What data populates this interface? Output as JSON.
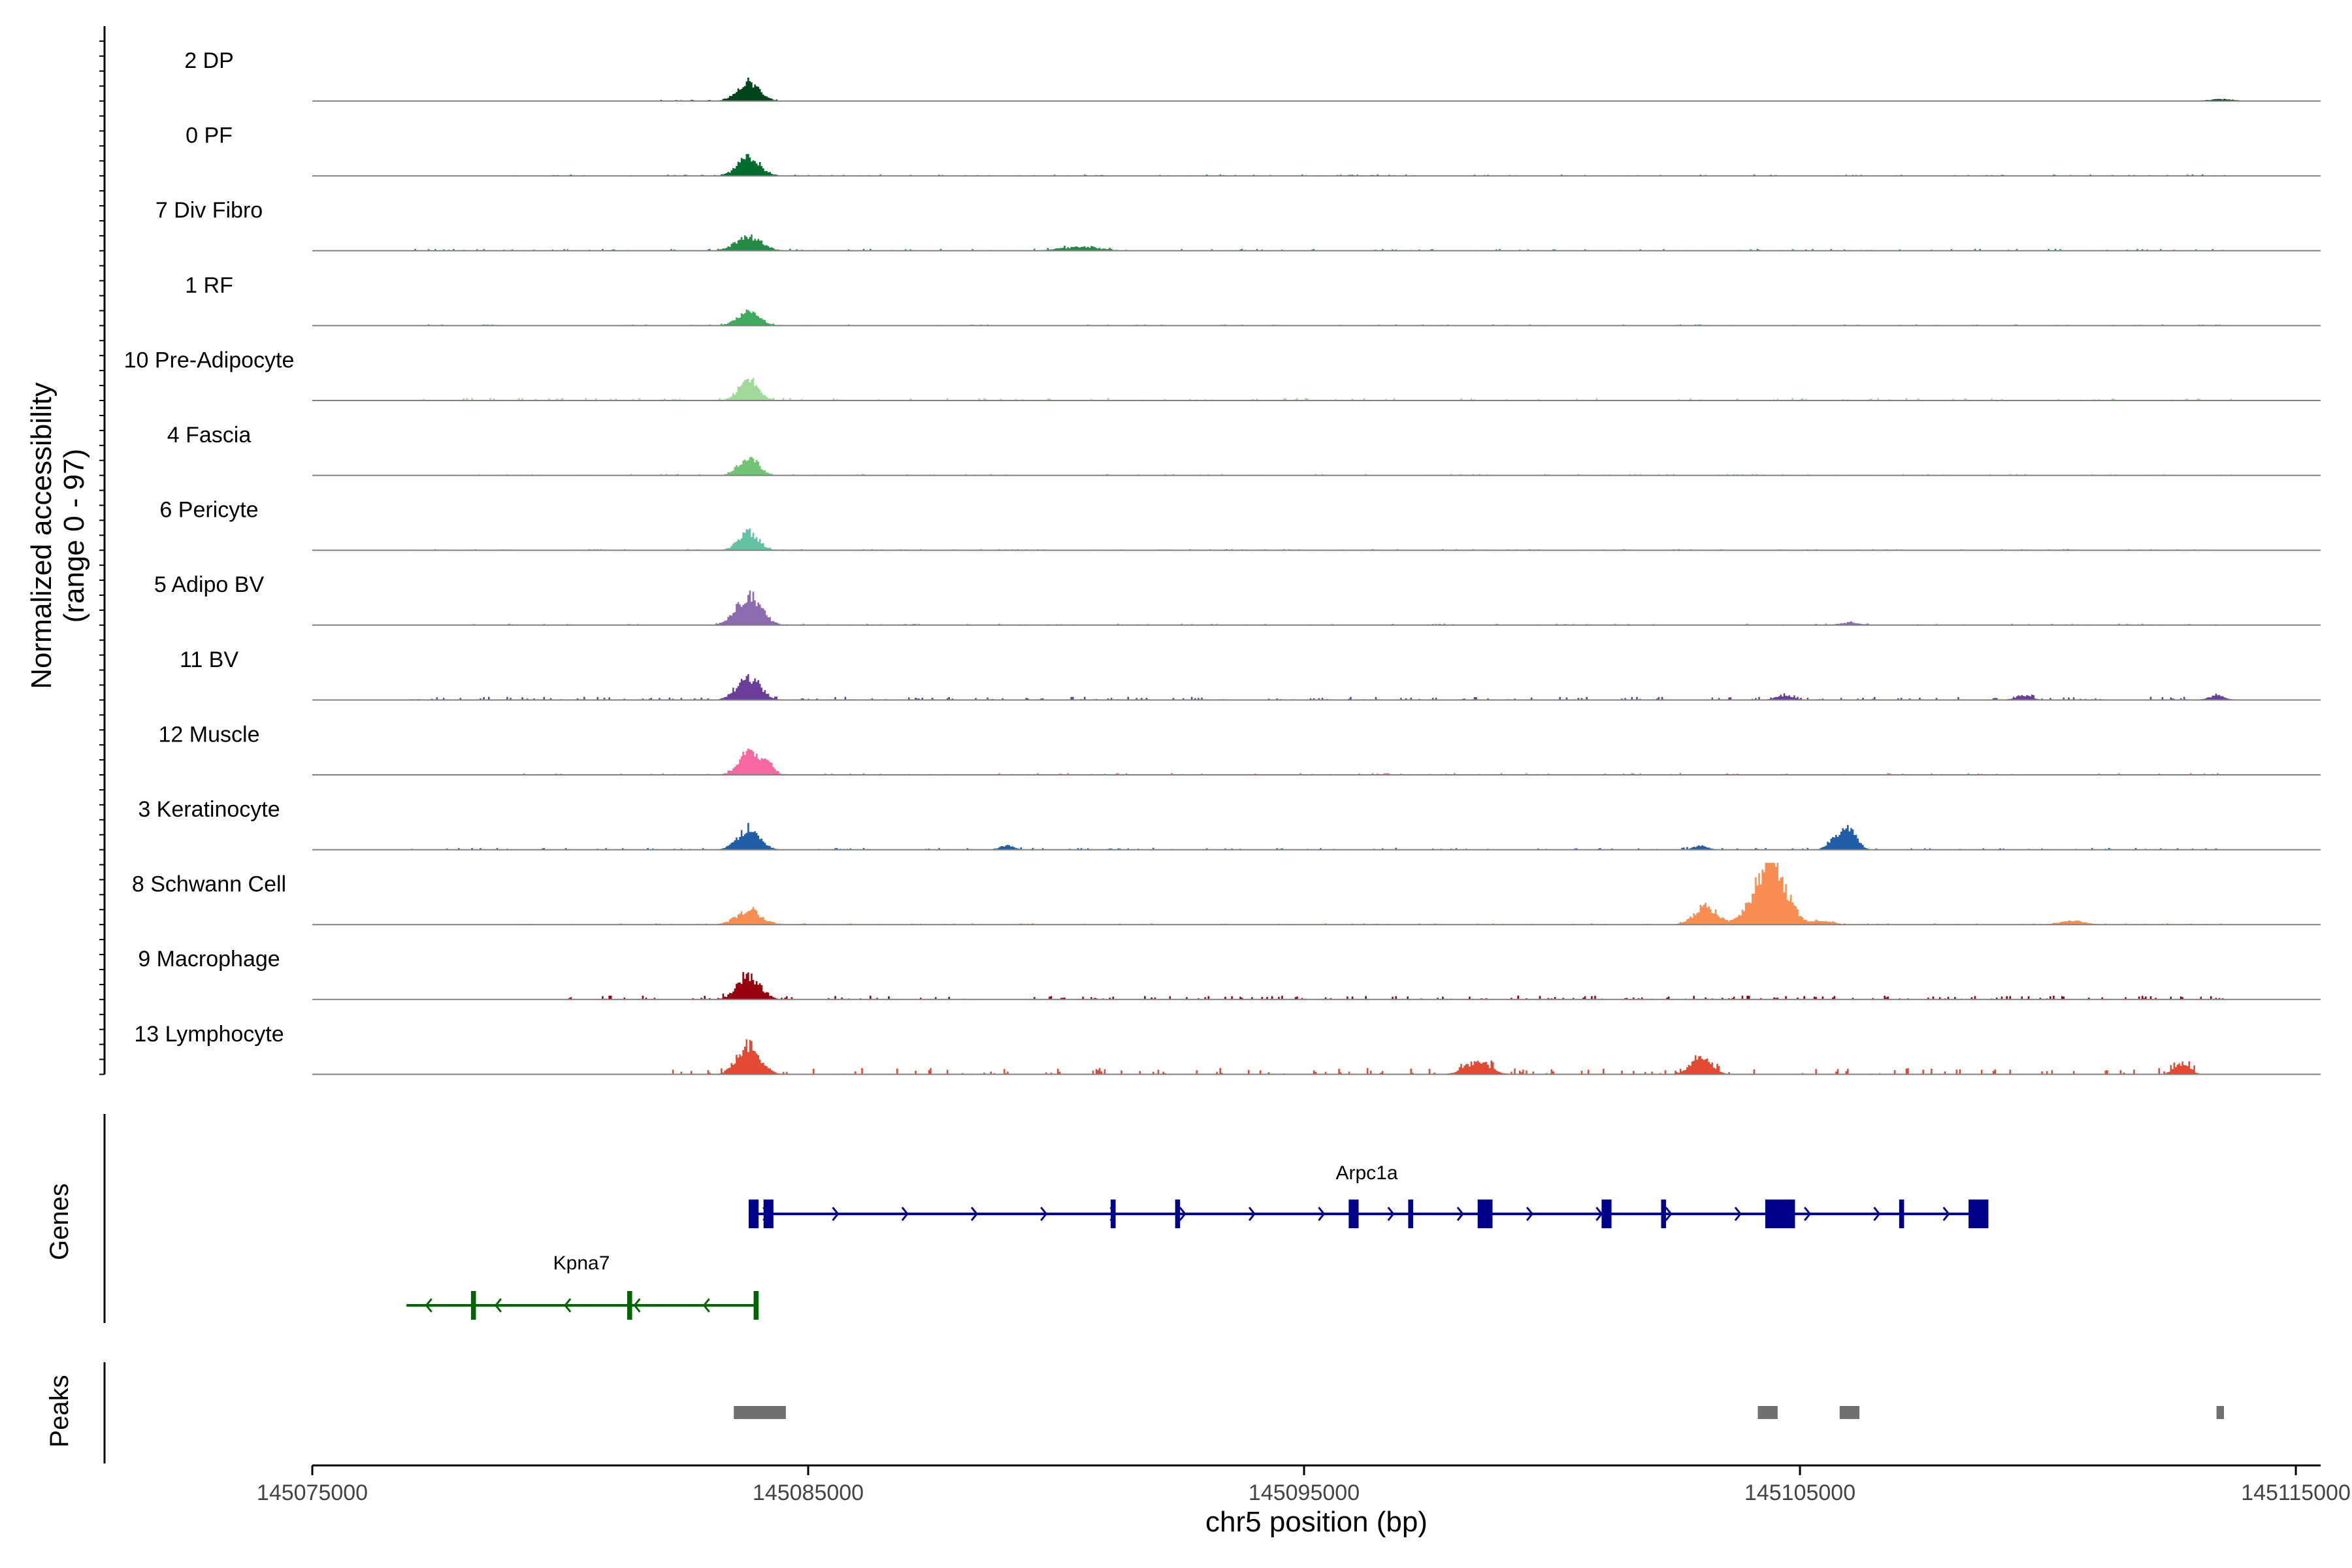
{
  "chart_data": {
    "type": "area",
    "chromosome": "chr5",
    "xlabel": "chr5 position (bp)",
    "ylabel_line1": "Normalized accessibility",
    "ylabel_line2": "(range 0 - 97)",
    "y_range": [
      0,
      97
    ],
    "xlim": [
      145075000,
      145115500
    ],
    "x_ticks": [
      145075000,
      145085000,
      145095000,
      145105000,
      145115000
    ],
    "x_tick_labels": [
      "145075000",
      "145085000",
      "145095000",
      "145105000",
      "145115000"
    ],
    "grid": false,
    "baseline_color": "#808080",
    "series": [
      {
        "name": "2 DP",
        "color": "#00441b",
        "peaks": [
          [
            145083800,
            30,
            220
          ],
          [
            145113500,
            3,
            250
          ]
        ],
        "noise": [
          145082000,
          145084600,
          2
        ]
      },
      {
        "name": "0 PF",
        "color": "#006d2c",
        "peaks": [
          [
            145083800,
            30,
            220
          ]
        ],
        "noise": [
          145079000,
          145113700,
          2
        ]
      },
      {
        "name": "7 Div Fibro",
        "color": "#238b45",
        "peaks": [
          [
            145083800,
            22,
            260
          ],
          [
            145090500,
            6,
            400
          ]
        ],
        "noise": [
          145077000,
          145113700,
          3
        ]
      },
      {
        "name": "1 RF",
        "color": "#41ab5d",
        "peaks": [
          [
            145083800,
            22,
            220
          ]
        ],
        "noise": [
          145077000,
          145113700,
          2
        ]
      },
      {
        "name": "10 Pre-Adipocyte",
        "color": "#a1d99b",
        "peaks": [
          [
            145083800,
            32,
            200
          ]
        ],
        "noise": [
          145077000,
          145113700,
          4
        ]
      },
      {
        "name": "4 Fascia",
        "color": "#74c476",
        "peaks": [
          [
            145083800,
            28,
            200
          ]
        ],
        "noise": [
          145077000,
          145113700,
          2
        ]
      },
      {
        "name": "6 Pericyte",
        "color": "#66c2a4",
        "peaks": [
          [
            145083800,
            28,
            200
          ]
        ],
        "noise": [
          145077000,
          145113700,
          2
        ]
      },
      {
        "name": "5 Adipo BV",
        "color": "#8c6bb1",
        "peaks": [
          [
            145083800,
            45,
            250
          ],
          [
            145106000,
            4,
            200
          ]
        ],
        "noise": [
          145078000,
          145113700,
          2
        ]
      },
      {
        "name": "11 BV",
        "color": "#6a3d9a",
        "peaks": [
          [
            145083800,
            32,
            240
          ],
          [
            145104700,
            7,
            180
          ],
          [
            145109500,
            7,
            160
          ],
          [
            145113400,
            7,
            160
          ]
        ],
        "noise": [
          145077000,
          145113700,
          5
        ]
      },
      {
        "name": "12 Muscle",
        "color": "#f768a1",
        "peaks": [
          [
            145083800,
            35,
            200
          ],
          [
            145084200,
            18,
            120
          ]
        ],
        "noise": [
          145079000,
          145113700,
          3
        ]
      },
      {
        "name": "3 Keratinocyte",
        "color": "#225ea8",
        "peaks": [
          [
            145083800,
            32,
            220
          ],
          [
            145106000,
            32,
            150
          ],
          [
            145105700,
            15,
            150
          ],
          [
            145103000,
            6,
            150
          ],
          [
            145089000,
            6,
            150
          ]
        ],
        "noise": [
          145077000,
          145113700,
          3
        ]
      },
      {
        "name": "8 Schwann Cell",
        "color": "#f98e52",
        "peaks": [
          [
            145083800,
            22,
            250
          ],
          [
            145104400,
            90,
            320
          ],
          [
            145103100,
            28,
            230
          ],
          [
            145105500,
            6,
            180
          ],
          [
            145110500,
            6,
            250
          ]
        ],
        "noise": [
          145079000,
          145113700,
          2
        ]
      },
      {
        "name": "9 Macrophage",
        "color": "#99000d",
        "peaks": [
          [
            145083800,
            35,
            230
          ]
        ],
        "noise": [
          145080000,
          145113700,
          6
        ]
      },
      {
        "name": "13 Lymphocyte",
        "color": "#e34a33",
        "peaks": [
          [
            145083800,
            45,
            230
          ],
          [
            145103000,
            30,
            200
          ],
          [
            145098500,
            20,
            250
          ],
          [
            145112700,
            18,
            150
          ]
        ],
        "noise": [
          145082000,
          145113400,
          10
        ]
      }
    ],
    "genes_track_label": "Genes",
    "genes": [
      {
        "name": "Arpc1a",
        "strand": "+",
        "color": "#00008b",
        "start": 145083800,
        "end": 145108800,
        "exons": [
          [
            145083800,
            145084000
          ],
          [
            145084100,
            145084300
          ],
          [
            145091100,
            145091200
          ],
          [
            145092400,
            145092500
          ],
          [
            145095900,
            145096100
          ],
          [
            145097100,
            145097200
          ],
          [
            145098500,
            145098800
          ],
          [
            145101000,
            145101200
          ],
          [
            145102200,
            145102300
          ],
          [
            145104300,
            145104900
          ],
          [
            145107000,
            145107100
          ],
          [
            145108400,
            145108800
          ]
        ]
      },
      {
        "name": "Kpna7",
        "strand": "-",
        "color": "#006400",
        "start": 145076900,
        "end": 145084000,
        "exons": [
          [
            145078200,
            145078300
          ],
          [
            145081350,
            145081450
          ],
          [
            145083900,
            145084000
          ]
        ]
      }
    ],
    "peaks_track_label": "Peaks",
    "peak_regions": [
      [
        145083500,
        145084550
      ],
      [
        145104150,
        145104550
      ],
      [
        145105800,
        145106200
      ],
      [
        145113400,
        145113550
      ]
    ],
    "peak_color": "#707070"
  }
}
